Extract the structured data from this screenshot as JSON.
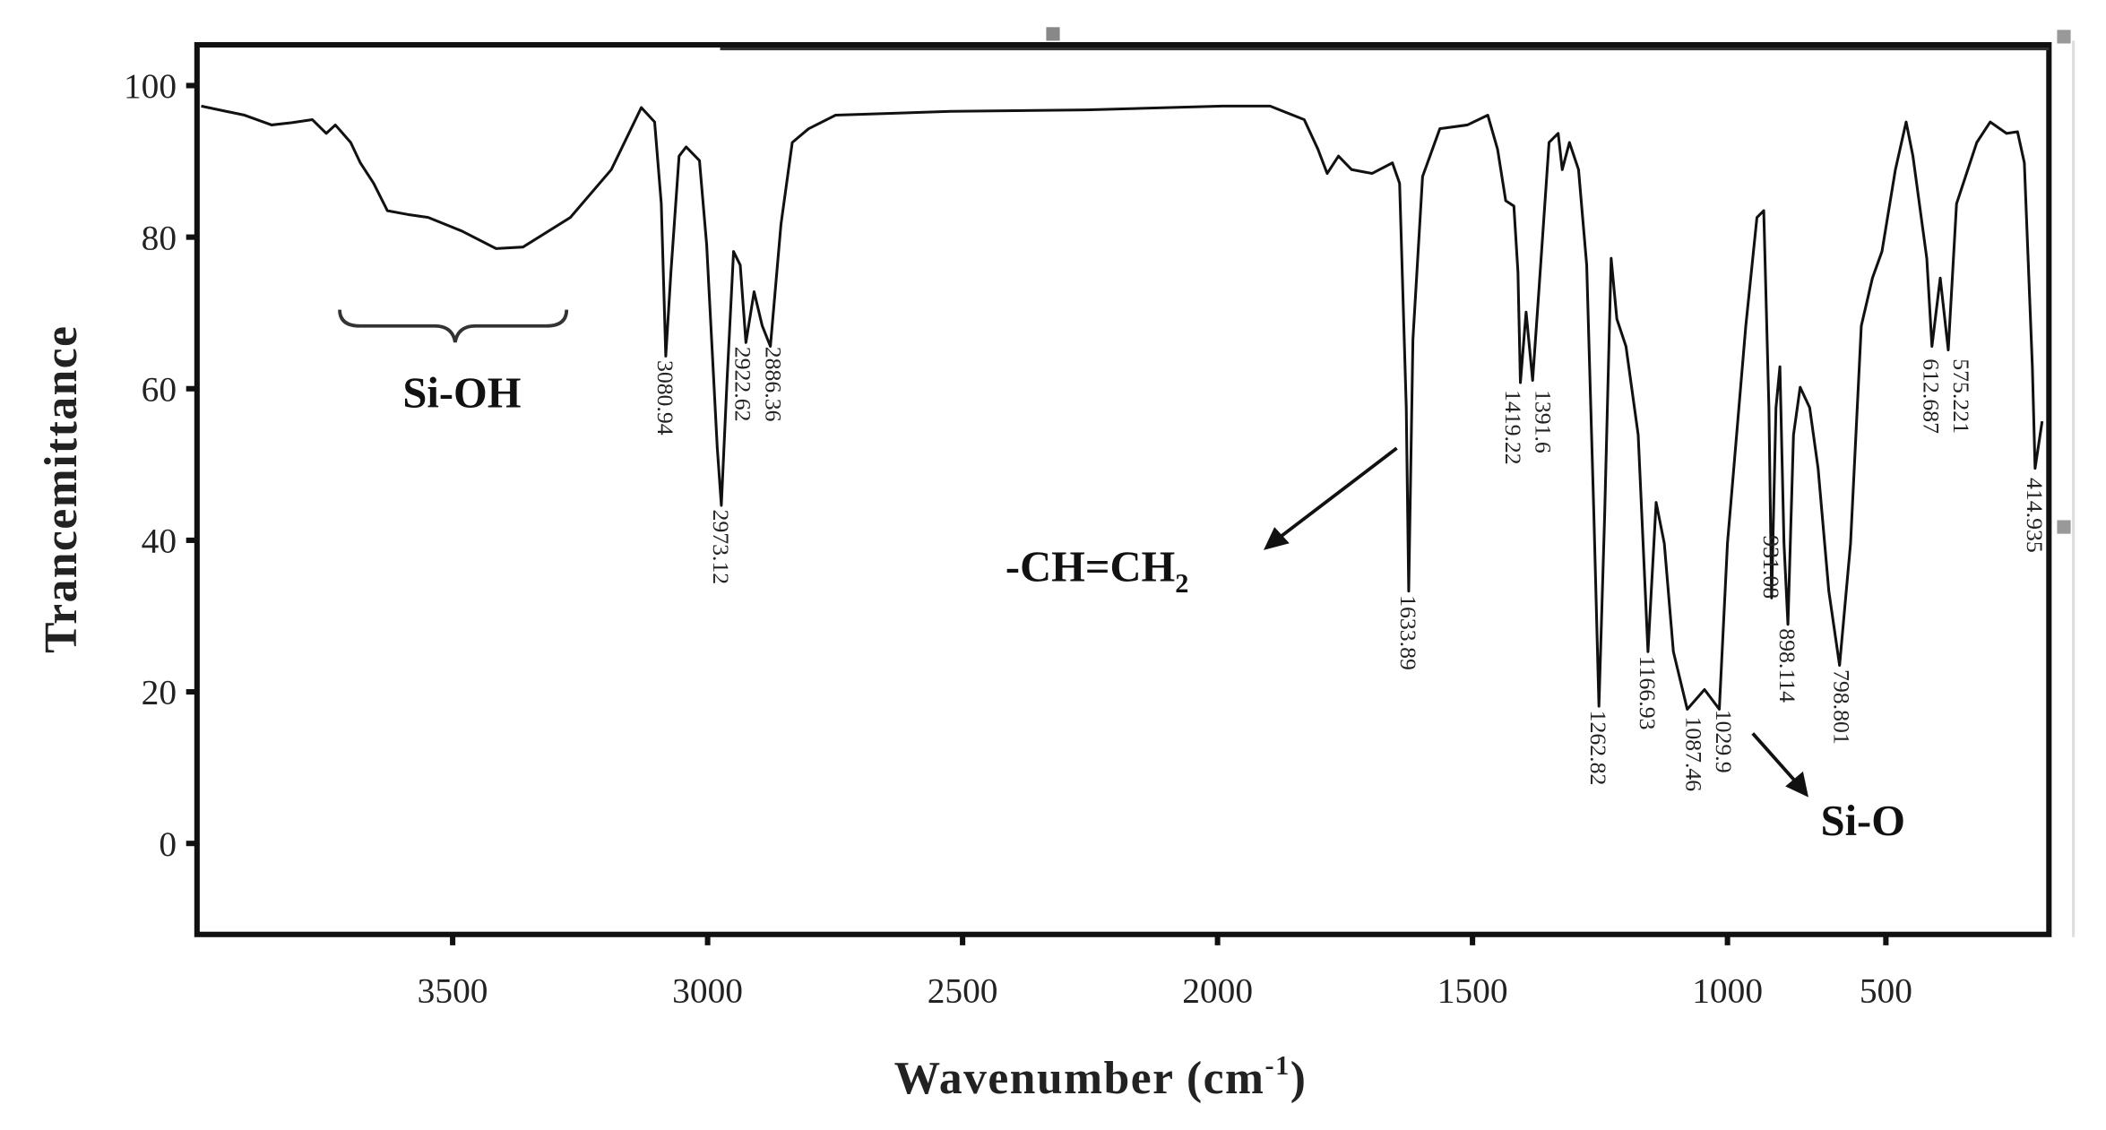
{
  "chart_data": {
    "type": "line",
    "title": "",
    "xlabel": "Wavenumber (cm",
    "xlabel_sup": "-1",
    "xlabel_close": ")",
    "ylabel": "Trancemittance",
    "xlim": [
      4000,
      -31
    ],
    "ylim": [
      -12,
      105
    ],
    "x_reversed": true,
    "grid": false,
    "line_color": "#111111",
    "xticks": [
      3500,
      3000,
      2500,
      2000,
      1500,
      1000,
      500
    ],
    "yticks": [
      100,
      80,
      60,
      40,
      20,
      0
    ],
    "series": [
      {
        "points": [
          [
            3993,
            97.3
          ],
          [
            3908,
            96.1
          ],
          [
            3855,
            94.8
          ],
          [
            3815,
            95.1
          ],
          [
            3775,
            95.5
          ],
          [
            3748,
            93.7
          ],
          [
            3730,
            94.8
          ],
          [
            3700,
            92.5
          ],
          [
            3681,
            89.8
          ],
          [
            3655,
            87.1
          ],
          [
            3628,
            83.5
          ],
          [
            3588,
            83.0
          ],
          [
            3548,
            82.6
          ],
          [
            3482,
            80.8
          ],
          [
            3415,
            78.5
          ],
          [
            3362,
            78.7
          ],
          [
            3269,
            82.6
          ],
          [
            3189,
            88.9
          ],
          [
            3130,
            97.1
          ],
          [
            3104,
            95.2
          ],
          [
            3091,
            84.4
          ],
          [
            3082,
            64.3
          ],
          [
            3072,
            75.4
          ],
          [
            3056,
            90.7
          ],
          [
            3042,
            91.9
          ],
          [
            3016,
            90.1
          ],
          [
            3002,
            79.0
          ],
          [
            2981,
            52.2
          ],
          [
            2973,
            44.6
          ],
          [
            2962,
            61.1
          ],
          [
            2949,
            78.1
          ],
          [
            2936,
            76.3
          ],
          [
            2925,
            66.1
          ],
          [
            2909,
            72.8
          ],
          [
            2893,
            68.3
          ],
          [
            2877,
            65.6
          ],
          [
            2856,
            81.7
          ],
          [
            2834,
            92.5
          ],
          [
            2802,
            94.3
          ],
          [
            2749,
            96.1
          ],
          [
            2523,
            96.6
          ],
          [
            2257,
            96.8
          ],
          [
            1990,
            97.3
          ],
          [
            1897,
            97.3
          ],
          [
            1830,
            95.5
          ],
          [
            1803,
            91.6
          ],
          [
            1785,
            88.4
          ],
          [
            1763,
            90.7
          ],
          [
            1737,
            88.9
          ],
          [
            1697,
            88.4
          ],
          [
            1657,
            89.8
          ],
          [
            1643,
            87.1
          ],
          [
            1630,
            57.5
          ],
          [
            1625,
            33.3
          ],
          [
            1617,
            66.5
          ],
          [
            1598,
            88.0
          ],
          [
            1564,
            94.3
          ],
          [
            1510,
            94.8
          ],
          [
            1470,
            96.1
          ],
          [
            1451,
            91.6
          ],
          [
            1435,
            84.8
          ],
          [
            1419,
            84.1
          ],
          [
            1411,
            75.4
          ],
          [
            1406,
            60.8
          ],
          [
            1395,
            70.1
          ],
          [
            1382,
            61.1
          ],
          [
            1369,
            73.7
          ],
          [
            1350,
            92.5
          ],
          [
            1332,
            93.7
          ],
          [
            1324,
            88.9
          ],
          [
            1310,
            92.5
          ],
          [
            1292,
            88.9
          ],
          [
            1276,
            76.3
          ],
          [
            1262,
            43.2
          ],
          [
            1252,
            18.1
          ],
          [
            1241,
            43.2
          ],
          [
            1228,
            77.2
          ],
          [
            1217,
            69.2
          ],
          [
            1199,
            65.6
          ],
          [
            1175,
            53.9
          ],
          [
            1156,
            25.3
          ],
          [
            1140,
            45.0
          ],
          [
            1124,
            39.6
          ],
          [
            1106,
            25.3
          ],
          [
            1079,
            17.7
          ],
          [
            1045,
            20.3
          ],
          [
            1016,
            17.7
          ],
          [
            1000,
            39.6
          ],
          [
            956,
            68.3
          ],
          [
            920,
            82.6
          ],
          [
            898,
            83.5
          ],
          [
            881,
            57.5
          ],
          [
            872,
            32.4
          ],
          [
            858,
            57.5
          ],
          [
            845,
            62.9
          ],
          [
            832,
            39.6
          ],
          [
            819,
            28.9
          ],
          [
            801,
            53.9
          ],
          [
            779,
            60.2
          ],
          [
            748,
            57.5
          ],
          [
            721,
            49.5
          ],
          [
            686,
            33.3
          ],
          [
            651,
            23.5
          ],
          [
            615,
            39.6
          ],
          [
            580,
            68.3
          ],
          [
            544,
            74.6
          ],
          [
            513,
            78.1
          ],
          [
            469,
            88.9
          ],
          [
            434,
            95.2
          ],
          [
            412,
            90.7
          ],
          [
            367,
            77.2
          ],
          [
            350,
            65.6
          ],
          [
            323,
            74.6
          ],
          [
            297,
            65.1
          ],
          [
            270,
            84.4
          ],
          [
            204,
            92.5
          ],
          [
            160,
            95.2
          ],
          [
            107,
            93.7
          ],
          [
            71,
            93.9
          ],
          [
            49,
            89.8
          ],
          [
            23,
            62.9
          ],
          [
            14,
            49.5
          ],
          [
            -9,
            55.7
          ]
        ]
      }
    ],
    "peak_labels": [
      {
        "text": "3080.94",
        "at": [
          3082,
          64.3
        ]
      },
      {
        "text": "2973.12",
        "at": [
          2973,
          44.6
        ]
      },
      {
        "text": "2922.62",
        "at": [
          2930,
          66.1
        ]
      },
      {
        "text": "2886.36",
        "at": [
          2870,
          66.1
        ]
      },
      {
        "text": "1633.89",
        "at": [
          1625,
          33.3
        ]
      },
      {
        "text": "1419.22",
        "at": [
          1419,
          60.4
        ]
      },
      {
        "text": "1391.6",
        "at": [
          1385,
          60.4
        ]
      },
      {
        "text": "1262.82",
        "at": [
          1252,
          18.1
        ]
      },
      {
        "text": "1166.93",
        "at": [
          1156,
          25.3
        ]
      },
      {
        "text": "1087.46",
        "at": [
          1065,
          17.3
        ]
      },
      {
        "text": "1029.9",
        "at": [
          1022,
          18.2
        ]
      },
      {
        "text": "931.08",
        "at": [
          872,
          41.2
        ]
      },
      {
        "text": "898.114",
        "at": [
          819,
          28.9
        ]
      },
      {
        "text": "798.801",
        "at": [
          642,
          23.5
        ]
      },
      {
        "text": "612.687",
        "at": [
          350,
          64.5
        ]
      },
      {
        "text": "575.221",
        "at": [
          278,
          64.5
        ]
      },
      {
        "text": "414.935",
        "at": [
          14,
          48.8
        ]
      }
    ],
    "annotations": {
      "si_oh": "Si-OH",
      "vinyl": "-CH=CH",
      "vinyl_sub": "2",
      "si_o": "Si-O"
    }
  }
}
